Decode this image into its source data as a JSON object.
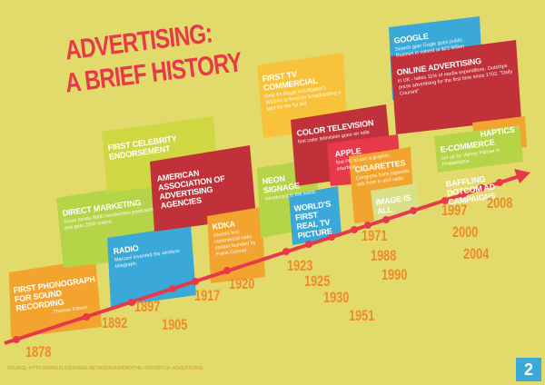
{
  "title": [
    "ADVERTISING:",
    "A BRIEF HISTORY"
  ],
  "events": [
    {
      "heading": "FIRST PHONOGRAPH FOR SOUND RECORDING",
      "text": "Thomas Edison."
    },
    {
      "heading": "DIRECT MARKETING",
      "text": "Sears sends 8000 handwritten postcards and gets 2000 orders."
    },
    {
      "heading": "RADIO",
      "text": "Marconi invented the wireless telegraph."
    },
    {
      "heading": "FIRST CELEBRITY ENDORSEMENT"
    },
    {
      "heading": "AMERICAN ASSOCIATION OF ADVERTISING AGENCIES"
    },
    {
      "heading": "KDKA",
      "text": "World's first commercial radio station founded by Frank Conrad."
    },
    {
      "heading": "NEON SIGNAGE",
      "text": "Introduced to the world."
    },
    {
      "heading": "WORLD'S FIRST REAL TV PICTURE"
    },
    {
      "heading": "FIRST TV COMMERCIAL",
      "text": "Only it's illegal and Boston's W1XAV is fined for broadcasting a spot for the fur led."
    },
    {
      "heading": "COLOR TELEVISION",
      "text": "first color television goes on sale"
    },
    {
      "heading": "APPLE",
      "text": "first PC to use a graphic interface"
    },
    {
      "heading": "CIGARETTES",
      "text": "Congress bans cigarette ads from tv and radio."
    },
    {
      "heading": "IMAGE IS ALL"
    },
    {
      "heading": "GOOGLE",
      "text": "Search gian Gogle goes public. Busines is valued at $23 Billion"
    },
    {
      "heading": "ONLINE ADVERTISING",
      "text": "in UK - takes 11% of media expenditure. Outstrips press advertising for the first time since 1702, \"Daily Courant\""
    },
    {
      "heading": "HAPTICS"
    },
    {
      "heading": "E-COMMERCE",
      "text": "set up by Volney Palmer in Philadelphia"
    },
    {
      "heading": "BAFFLING DOTCOM AD CAMPAIGNS"
    }
  ],
  "years": [
    "1878",
    "1892",
    "1897",
    "1905",
    "1917",
    "1920",
    "1923",
    "1925",
    "1930",
    "1951",
    "1971",
    "1988",
    "1990",
    "1997",
    "2000",
    "2004",
    "2008"
  ],
  "source": "SOURCE: HTTP://WWW.SLIDESHARE.NET/ANDROIDMIND/THE-HISTORY-OF-ADVERTISING",
  "page": "2"
}
